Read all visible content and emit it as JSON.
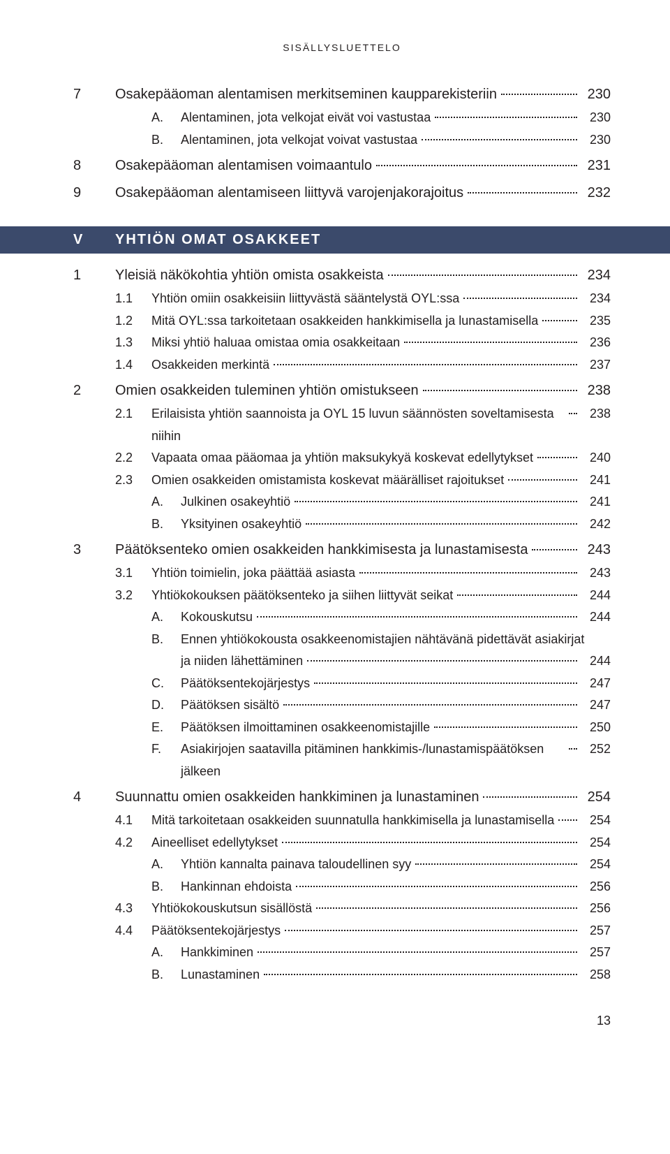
{
  "runningHead": "SISÄLLYSLUETTELO",
  "pageNumber": "13",
  "sectionBar": {
    "roman": "V",
    "title": "YHTIÖN OMAT OSAKKEET"
  },
  "blocks": [
    {
      "kind": "line",
      "level": "top",
      "num": "7",
      "text": "Osakepääoman alentamisen merkitseminen kaupparekisteriin",
      "page": "230"
    },
    {
      "kind": "line",
      "level": "sub",
      "num": "A.",
      "text": "Alentaminen, jota velkojat eivät voi vastustaa",
      "page": "230",
      "indentOverride": "subsub"
    },
    {
      "kind": "line",
      "level": "sub",
      "num": "B.",
      "text": "Alentaminen, jota velkojat voivat vastustaa",
      "page": "230",
      "indentOverride": "subsub"
    },
    {
      "kind": "line",
      "level": "top",
      "num": "8",
      "text": "Osakepääoman alentamisen voimaantulo",
      "page": "231"
    },
    {
      "kind": "line",
      "level": "top",
      "num": "9",
      "text": "Osakepääoman alentamiseen liittyvä varojenjakorajoitus",
      "page": "232"
    },
    {
      "kind": "bar"
    },
    {
      "kind": "line",
      "level": "top",
      "num": "1",
      "text": "Yleisiä näkökohtia yhtiön omista osakkeista",
      "page": "234"
    },
    {
      "kind": "line",
      "level": "sub",
      "num": "1.1",
      "text": "Yhtiön omiin osakkeisiin liittyvästä sääntelystä OYL:ssa",
      "page": "234"
    },
    {
      "kind": "line",
      "level": "sub",
      "num": "1.2",
      "text": "Mitä OYL:ssa tarkoitetaan osakkeiden hankkimisella ja lunastamisella",
      "page": "235"
    },
    {
      "kind": "line",
      "level": "sub",
      "num": "1.3",
      "text": "Miksi yhtiö haluaa omistaa omia osakkeitaan",
      "page": "236"
    },
    {
      "kind": "line",
      "level": "sub",
      "num": "1.4",
      "text": "Osakkeiden merkintä",
      "page": "237"
    },
    {
      "kind": "line",
      "level": "top",
      "num": "2",
      "text": "Omien osakkeiden tuleminen yhtiön omistukseen",
      "page": "238"
    },
    {
      "kind": "line",
      "level": "sub",
      "num": "2.1",
      "text": "Erilaisista yhtiön saannoista ja OYL 15 luvun säännösten soveltamisesta niihin",
      "page": "238"
    },
    {
      "kind": "line",
      "level": "sub",
      "num": "2.2",
      "text": "Vapaata omaa pääomaa ja yhtiön maksukykyä koskevat edellytykset",
      "page": "240"
    },
    {
      "kind": "line",
      "level": "sub",
      "num": "2.3",
      "text": "Omien osakkeiden omistamista koskevat määrälliset rajoitukset",
      "page": "241"
    },
    {
      "kind": "line",
      "level": "subsub",
      "num": "A.",
      "text": "Julkinen osakeyhtiö",
      "page": "241"
    },
    {
      "kind": "line",
      "level": "subsub",
      "num": "B.",
      "text": "Yksityinen osakeyhtiö",
      "page": "242"
    },
    {
      "kind": "line",
      "level": "top",
      "num": "3",
      "text": "Päätöksenteko omien osakkeiden hankkimisesta ja lunastamisesta",
      "page": "243"
    },
    {
      "kind": "line",
      "level": "sub",
      "num": "3.1",
      "text": "Yhtiön toimielin, joka päättää asiasta",
      "page": "243"
    },
    {
      "kind": "line",
      "level": "sub",
      "num": "3.2",
      "text": "Yhtiökokouksen päätöksenteko ja siihen liittyvät seikat",
      "page": "244"
    },
    {
      "kind": "line",
      "level": "subsub",
      "num": "A.",
      "text": "Kokouskutsu",
      "page": "244"
    },
    {
      "kind": "wrapline",
      "level": "subsub",
      "num": "B.",
      "text1": "Ennen yhtiökokousta osakkeenomistajien nähtävänä pidettävät asiakirjat",
      "text2": "ja niiden lähettäminen",
      "page": "244"
    },
    {
      "kind": "line",
      "level": "subsub",
      "num": "C.",
      "text": "Päätöksentekojärjestys",
      "page": "247"
    },
    {
      "kind": "line",
      "level": "subsub",
      "num": "D.",
      "text": "Päätöksen sisältö",
      "page": "247"
    },
    {
      "kind": "line",
      "level": "subsub",
      "num": "E.",
      "text": "Päätöksen ilmoittaminen osakkeenomistajille",
      "page": "250"
    },
    {
      "kind": "line",
      "level": "subsub",
      "num": "F.",
      "text": "Asiakirjojen saatavilla pitäminen hankkimis-/lunastamispäätöksen jälkeen",
      "page": "252"
    },
    {
      "kind": "line",
      "level": "top",
      "num": "4",
      "text": "Suunnattu omien osakkeiden hankkiminen ja lunastaminen",
      "page": "254"
    },
    {
      "kind": "line",
      "level": "sub",
      "num": "4.1",
      "text": "Mitä tarkoitetaan osakkeiden suunnatulla hankkimisella ja lunastamisella",
      "page": "254"
    },
    {
      "kind": "line",
      "level": "sub",
      "num": "4.2",
      "text": "Aineelliset edellytykset",
      "page": "254"
    },
    {
      "kind": "line",
      "level": "subsub",
      "num": "A.",
      "text": "Yhtiön kannalta painava taloudellinen syy",
      "page": "254"
    },
    {
      "kind": "line",
      "level": "subsub",
      "num": "B.",
      "text": "Hankinnan ehdoista",
      "page": "256"
    },
    {
      "kind": "line",
      "level": "sub",
      "num": "4.3",
      "text": "Yhtiökokouskutsun sisällöstä",
      "page": "256"
    },
    {
      "kind": "line",
      "level": "sub",
      "num": "4.4",
      "text": "Päätöksentekojärjestys",
      "page": "257"
    },
    {
      "kind": "line",
      "level": "subsub",
      "num": "A.",
      "text": "Hankkiminen",
      "page": "257"
    },
    {
      "kind": "line",
      "level": "subsub",
      "num": "B.",
      "text": "Lunastaminen",
      "page": "258"
    }
  ]
}
